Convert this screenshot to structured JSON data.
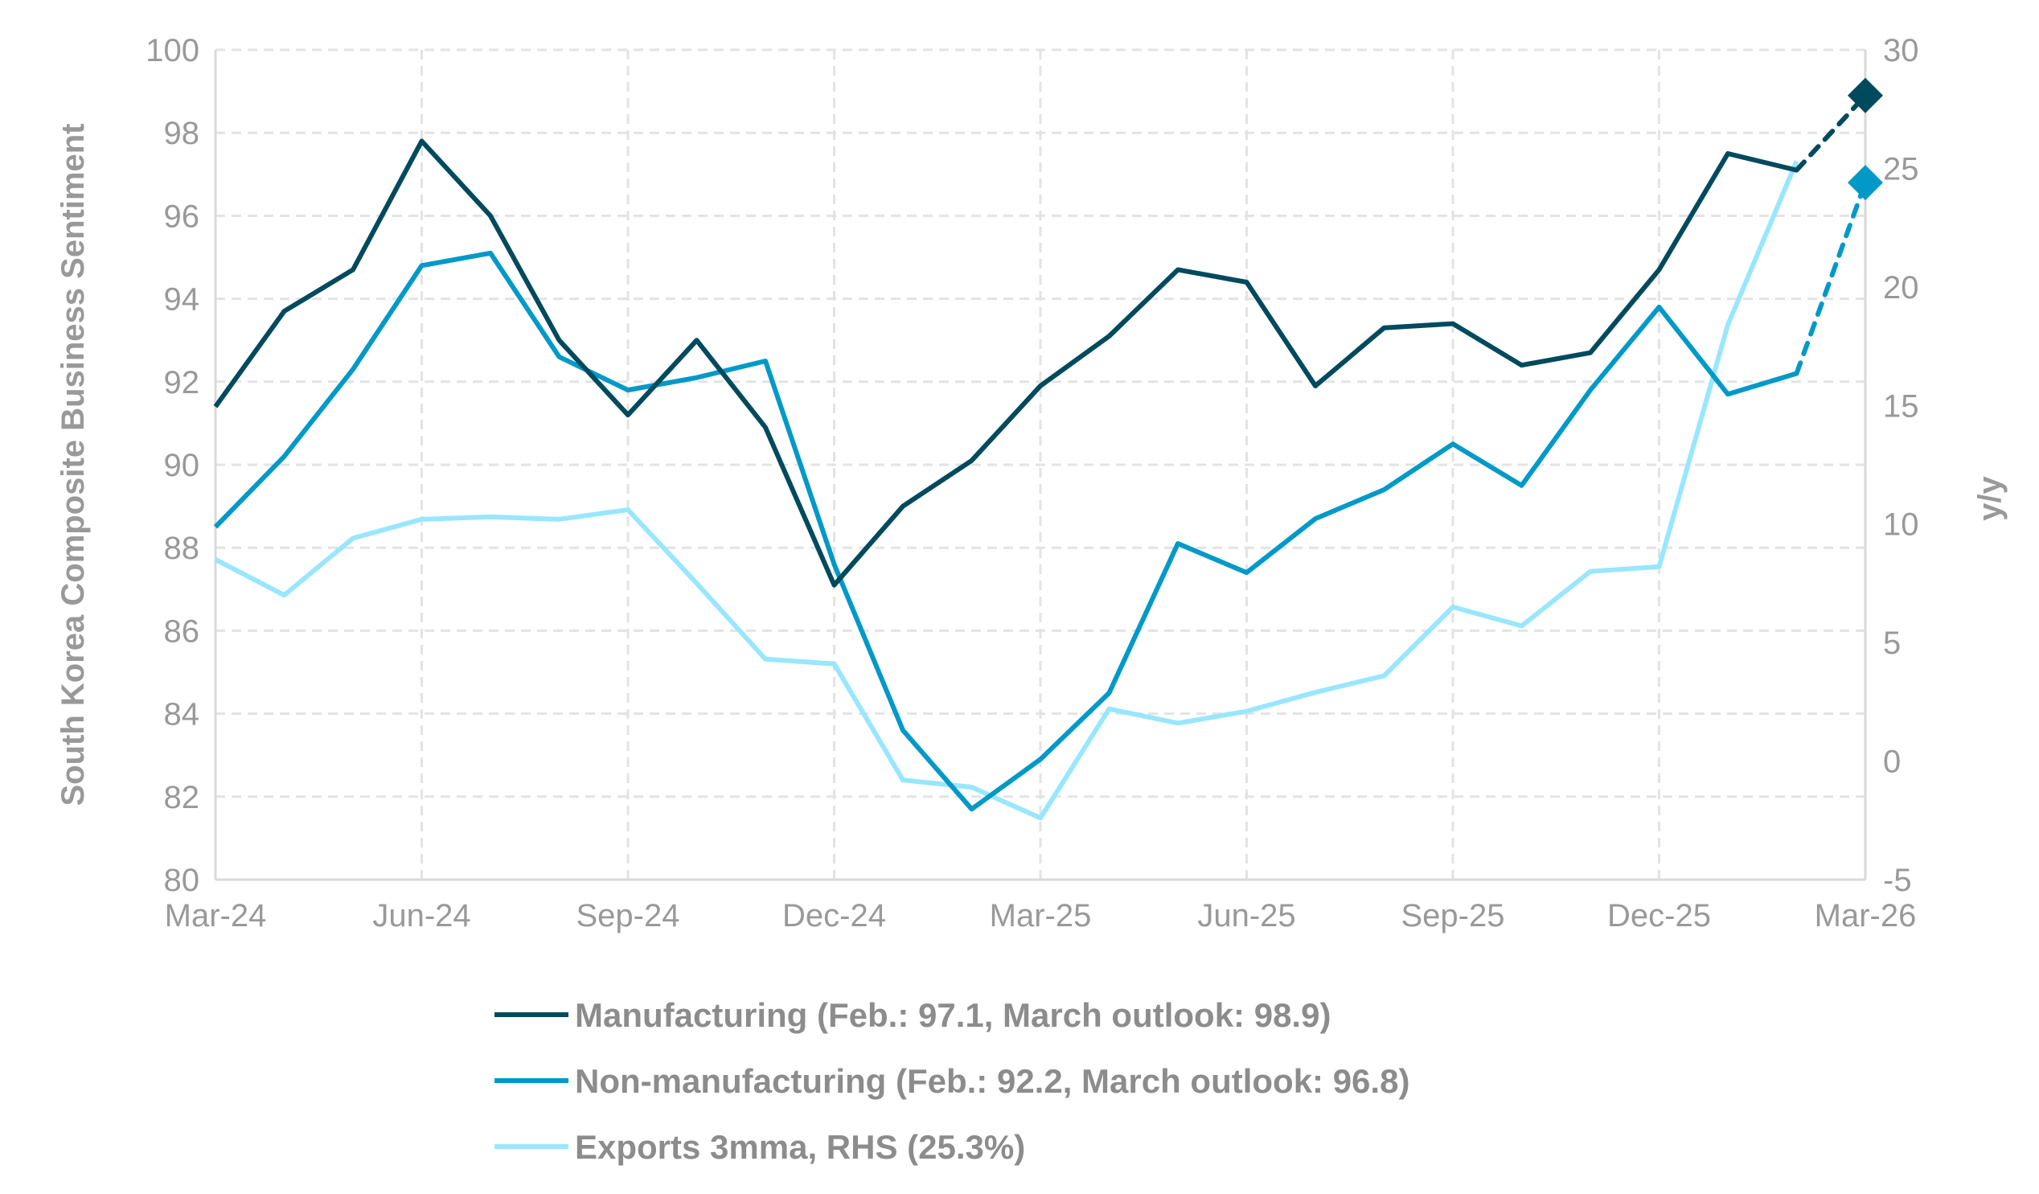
{
  "chart_data": {
    "type": "line",
    "title": "",
    "ylabel": "South Korea Composite Business Sentiment",
    "y2label": "y/y",
    "ylim": [
      80,
      100
    ],
    "y2lim": [
      -5,
      30
    ],
    "yticks": [
      80,
      82,
      84,
      86,
      88,
      90,
      92,
      94,
      96,
      98,
      100
    ],
    "y2ticks": [
      -5,
      0,
      5,
      10,
      15,
      20,
      25,
      30
    ],
    "x": [
      "Mar-24",
      "Apr-24",
      "May-24",
      "Jun-24",
      "Jul-24",
      "Aug-24",
      "Sep-24",
      "Oct-24",
      "Nov-24",
      "Dec-24",
      "Jan-25",
      "Feb-25",
      "Mar-25",
      "Apr-25",
      "May-25",
      "Jun-25",
      "Jul-25",
      "Aug-25",
      "Sep-25",
      "Oct-25",
      "Nov-25",
      "Dec-25",
      "Jan-26",
      "Feb-26",
      "Mar-26"
    ],
    "xtick_labels": [
      "Mar-24",
      "Jun-24",
      "Sep-24",
      "Dec-24",
      "Mar-25",
      "Jun-25",
      "Sep-25",
      "Dec-25",
      "Mar-26"
    ],
    "grid": true,
    "legend_position": "bottom",
    "series": [
      {
        "name": "Manufacturing (Feb.: 97.1, March outlook: 98.9)",
        "axis": "left",
        "color": "#004a5e",
        "values": [
          91.4,
          93.7,
          94.7,
          97.8,
          96.0,
          93.0,
          91.2,
          93.0,
          90.9,
          87.1,
          89.0,
          90.1,
          91.9,
          93.1,
          94.7,
          94.4,
          91.9,
          93.3,
          93.4,
          92.4,
          92.7,
          94.7,
          97.5,
          97.1,
          null
        ],
        "outlook": {
          "x": "Mar-26",
          "value": 98.9,
          "style": "dashed",
          "marker": "diamond"
        }
      },
      {
        "name": "Non-manufacturing (Feb.: 92.2, March outlook: 96.8)",
        "axis": "left",
        "color": "#0099c8",
        "values": [
          88.5,
          90.2,
          92.3,
          94.8,
          95.1,
          92.6,
          91.8,
          92.1,
          92.5,
          87.6,
          83.6,
          81.7,
          82.9,
          84.5,
          88.1,
          87.4,
          88.7,
          89.4,
          90.5,
          89.5,
          91.8,
          93.8,
          91.7,
          92.2,
          null
        ],
        "outlook": {
          "x": "Mar-26",
          "value": 96.8,
          "style": "dashed",
          "marker": "diamond"
        }
      },
      {
        "name": "Exports 3mma, RHS (25.3%)",
        "axis": "right",
        "color": "#99e6ff",
        "values": [
          8.5,
          7.0,
          9.4,
          10.2,
          10.3,
          10.2,
          10.6,
          7.5,
          4.3,
          4.1,
          -0.8,
          -1.1,
          -2.4,
          2.2,
          1.6,
          2.1,
          2.9,
          3.6,
          6.5,
          5.7,
          8.0,
          8.2,
          18.4,
          25.3,
          null
        ]
      }
    ]
  }
}
